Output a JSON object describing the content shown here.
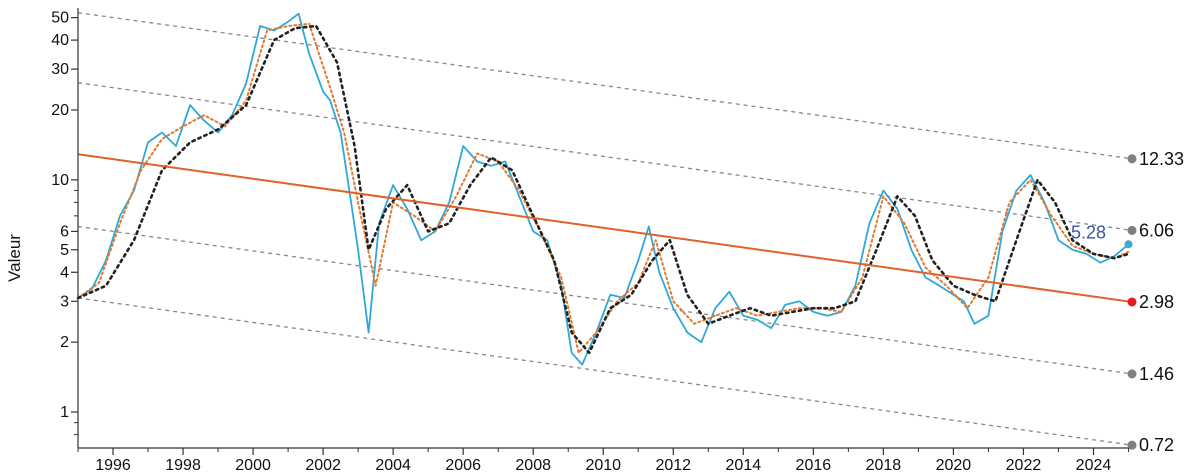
{
  "chart_data": {
    "type": "line",
    "title": "",
    "xlabel": "",
    "ylabel": "Valeur",
    "y_scale": "log",
    "xlim": [
      1995.0,
      2025.1
    ],
    "ylim": [
      0.7,
      55
    ],
    "x_ticks": [
      1996,
      1998,
      2000,
      2002,
      2004,
      2006,
      2008,
      2010,
      2012,
      2014,
      2016,
      2018,
      2020,
      2022,
      2024
    ],
    "x_tick_labels": [
      "1996",
      "1998",
      "2000",
      "2002",
      "2004",
      "2006",
      "2008",
      "2010",
      "2012",
      "2014",
      "2016",
      "2018",
      "2020",
      "2022",
      "2024"
    ],
    "y_ticks": [
      1,
      2,
      3,
      4,
      5,
      6,
      10,
      20,
      30,
      40,
      50
    ],
    "y_tick_labels": [
      "1",
      "2",
      "3",
      "4",
      "5",
      "6",
      "10",
      "20",
      "30",
      "40",
      "50"
    ],
    "grid": false,
    "current_value": {
      "x": 2025.0,
      "y": 5.28,
      "label": "5.28",
      "color": "#3b57a0"
    },
    "regression": {
      "color": "#e0622a",
      "start": {
        "x": 1995.0,
        "y": 12.9
      },
      "end": {
        "x": 2025.1,
        "y": 2.98
      },
      "end_label": "2.98",
      "end_marker_color": "#e02020"
    },
    "channels": [
      {
        "start": {
          "x": 1995.0,
          "y": 52.5
        },
        "end": {
          "x": 2025.1,
          "y": 12.33
        },
        "end_label": "12.33"
      },
      {
        "start": {
          "x": 1995.0,
          "y": 26.2
        },
        "end": {
          "x": 2025.1,
          "y": 6.06
        },
        "end_label": "6.06"
      },
      {
        "start": {
          "x": 1995.0,
          "y": 6.3
        },
        "end": {
          "x": 2025.1,
          "y": 1.46
        },
        "end_label": "1.46"
      },
      {
        "start": {
          "x": 1995.0,
          "y": 3.1
        },
        "end": {
          "x": 2025.1,
          "y": 0.72
        },
        "end_label": "0.72"
      }
    ],
    "series": [
      {
        "style": "solid",
        "color": "#2fa8d8",
        "x": [
          1995.0,
          1995.4,
          1995.8,
          1996.2,
          1996.6,
          1997.0,
          1997.4,
          1997.8,
          1998.2,
          1998.6,
          1999.0,
          1999.4,
          1999.8,
          2000.2,
          2000.6,
          2001.0,
          2001.3,
          2001.6,
          2002.0,
          2002.2,
          2002.5,
          2002.8,
          2003.0,
          2003.3,
          2003.6,
          2004.0,
          2004.4,
          2004.8,
          2005.2,
          2005.6,
          2006.0,
          2006.4,
          2006.8,
          2007.2,
          2007.6,
          2008.0,
          2008.4,
          2008.8,
          2009.1,
          2009.4,
          2009.8,
          2010.2,
          2010.6,
          2011.0,
          2011.3,
          2011.6,
          2012.0,
          2012.4,
          2012.8,
          2013.2,
          2013.6,
          2014.0,
          2014.4,
          2014.8,
          2015.2,
          2015.6,
          2016.0,
          2016.4,
          2016.8,
          2017.2,
          2017.6,
          2018.0,
          2018.4,
          2018.8,
          2019.2,
          2019.6,
          2020.0,
          2020.3,
          2020.6,
          2021.0,
          2021.4,
          2021.8,
          2022.2,
          2022.6,
          2023.0,
          2023.4,
          2023.8,
          2024.2,
          2024.6,
          2025.0
        ],
        "y": [
          3.1,
          3.4,
          4.5,
          7.0,
          9.0,
          14.5,
          16.0,
          14.0,
          21.0,
          18.0,
          16.0,
          19.0,
          26.0,
          46.0,
          44.0,
          48.0,
          52.0,
          35.0,
          24.0,
          22.0,
          16.0,
          8.0,
          5.0,
          2.2,
          6.5,
          9.5,
          7.5,
          5.5,
          6.0,
          8.0,
          14.0,
          12.0,
          11.5,
          12.0,
          8.5,
          6.0,
          5.5,
          3.5,
          1.8,
          1.6,
          2.2,
          3.2,
          3.1,
          4.5,
          6.3,
          4.0,
          2.8,
          2.2,
          2.0,
          2.8,
          3.3,
          2.6,
          2.5,
          2.3,
          2.9,
          3.0,
          2.7,
          2.6,
          2.7,
          3.5,
          6.5,
          9.0,
          7.5,
          5.0,
          3.8,
          3.5,
          3.2,
          3.0,
          2.4,
          2.6,
          6.0,
          9.0,
          10.5,
          8.0,
          5.5,
          5.0,
          4.8,
          4.4,
          4.7,
          5.28
        ]
      },
      {
        "style": "dotted",
        "color": "#e07a30",
        "x": [
          1995.0,
          1995.6,
          1996.2,
          1996.8,
          1997.4,
          1998.0,
          1998.6,
          1999.2,
          1999.8,
          2000.4,
          2001.0,
          2001.6,
          2002.2,
          2002.6,
          2003.0,
          2003.5,
          2004.0,
          2004.6,
          2005.2,
          2005.8,
          2006.4,
          2007.0,
          2007.6,
          2008.2,
          2008.8,
          2009.3,
          2009.8,
          2010.4,
          2011.0,
          2011.5,
          2012.0,
          2012.6,
          2013.2,
          2013.8,
          2014.4,
          2015.0,
          2015.6,
          2016.2,
          2016.8,
          2017.4,
          2018.0,
          2018.6,
          2019.2,
          2019.8,
          2020.4,
          2021.0,
          2021.6,
          2022.2,
          2022.8,
          2023.4,
          2024.0,
          2024.6,
          2025.0
        ],
        "y": [
          3.1,
          3.6,
          6.5,
          11.0,
          15.0,
          17.0,
          19.0,
          17.0,
          22.0,
          44.0,
          46.0,
          47.0,
          25.0,
          16.0,
          8.0,
          3.5,
          8.0,
          7.0,
          6.0,
          8.5,
          13.0,
          12.0,
          9.0,
          6.0,
          3.8,
          1.8,
          2.2,
          3.0,
          3.6,
          5.5,
          3.0,
          2.4,
          2.6,
          2.8,
          2.6,
          2.7,
          2.8,
          2.8,
          2.7,
          3.8,
          8.5,
          6.5,
          4.2,
          3.5,
          2.8,
          3.8,
          8.0,
          10.0,
          7.0,
          5.2,
          4.8,
          4.6,
          4.9
        ]
      },
      {
        "style": "dotted",
        "color": "#222222",
        "x": [
          1995.0,
          1995.8,
          1996.6,
          1997.4,
          1998.2,
          1999.0,
          1999.8,
          2000.6,
          2001.2,
          2001.8,
          2002.4,
          2002.9,
          2003.3,
          2003.8,
          2004.4,
          2005.0,
          2005.6,
          2006.2,
          2006.8,
          2007.4,
          2008.0,
          2008.6,
          2009.1,
          2009.6,
          2010.2,
          2010.8,
          2011.4,
          2011.9,
          2012.4,
          2013.0,
          2013.6,
          2014.2,
          2014.8,
          2015.4,
          2016.0,
          2016.6,
          2017.2,
          2017.8,
          2018.4,
          2018.9,
          2019.4,
          2020.0,
          2020.6,
          2021.2,
          2021.8,
          2022.4,
          2022.9,
          2023.4,
          2024.0,
          2024.6,
          2025.0
        ],
        "y": [
          3.1,
          3.5,
          5.5,
          11.0,
          14.5,
          16.5,
          21.0,
          40.0,
          45.0,
          46.0,
          32.0,
          14.0,
          5.0,
          7.5,
          9.5,
          6.0,
          6.5,
          9.5,
          12.5,
          11.0,
          7.0,
          4.5,
          2.2,
          1.8,
          2.8,
          3.2,
          4.5,
          5.5,
          3.2,
          2.4,
          2.6,
          2.8,
          2.6,
          2.7,
          2.8,
          2.8,
          3.0,
          5.0,
          8.5,
          7.0,
          4.5,
          3.5,
          3.2,
          3.0,
          5.5,
          10.0,
          8.0,
          5.5,
          4.8,
          4.6,
          4.8
        ]
      }
    ]
  }
}
